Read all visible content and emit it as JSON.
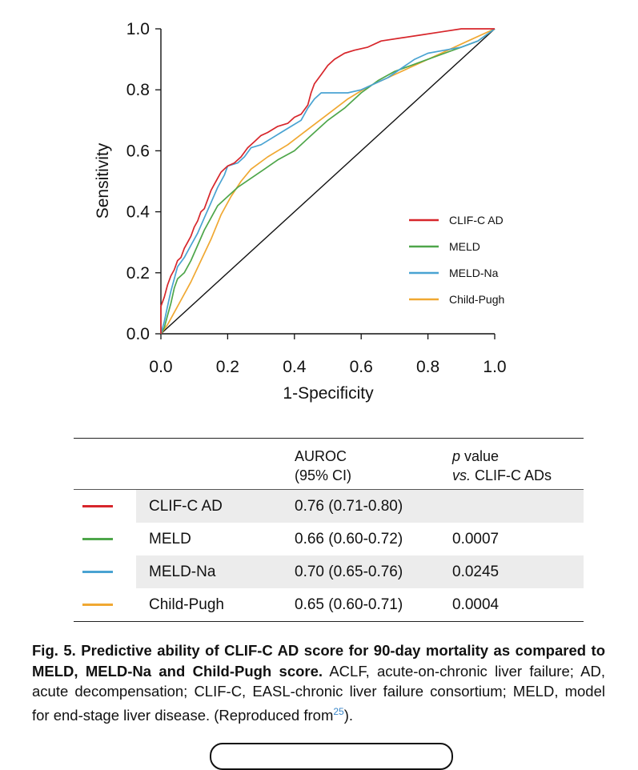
{
  "chart_data": {
    "type": "line",
    "xlabel": "1-Specificity",
    "ylabel": "Sensitivity",
    "xlim": [
      0,
      1
    ],
    "ylim": [
      0,
      1
    ],
    "xticks": [
      "0.0",
      "0.2",
      "0.4",
      "0.6",
      "0.8",
      "1.0"
    ],
    "yticks": [
      "0.0",
      "0.2",
      "0.4",
      "0.6",
      "0.8",
      "1.0"
    ],
    "grid": false,
    "legend_position": "lower-right",
    "reference_line": [
      [
        0,
        0
      ],
      [
        1,
        1
      ]
    ],
    "series": [
      {
        "name": "CLIF-C AD",
        "color": "#d7262b",
        "points": [
          [
            0,
            0
          ],
          [
            0,
            0.09
          ],
          [
            0.01,
            0.12
          ],
          [
            0.02,
            0.16
          ],
          [
            0.03,
            0.19
          ],
          [
            0.04,
            0.21
          ],
          [
            0.05,
            0.24
          ],
          [
            0.06,
            0.25
          ],
          [
            0.07,
            0.28
          ],
          [
            0.08,
            0.3
          ],
          [
            0.09,
            0.32
          ],
          [
            0.1,
            0.35
          ],
          [
            0.11,
            0.37
          ],
          [
            0.12,
            0.4
          ],
          [
            0.13,
            0.41
          ],
          [
            0.14,
            0.44
          ],
          [
            0.15,
            0.47
          ],
          [
            0.16,
            0.49
          ],
          [
            0.17,
            0.51
          ],
          [
            0.18,
            0.53
          ],
          [
            0.19,
            0.54
          ],
          [
            0.2,
            0.55
          ],
          [
            0.22,
            0.56
          ],
          [
            0.24,
            0.58
          ],
          [
            0.26,
            0.61
          ],
          [
            0.28,
            0.63
          ],
          [
            0.3,
            0.65
          ],
          [
            0.32,
            0.66
          ],
          [
            0.35,
            0.68
          ],
          [
            0.38,
            0.69
          ],
          [
            0.4,
            0.71
          ],
          [
            0.42,
            0.72
          ],
          [
            0.44,
            0.75
          ],
          [
            0.45,
            0.79
          ],
          [
            0.46,
            0.82
          ],
          [
            0.48,
            0.85
          ],
          [
            0.5,
            0.88
          ],
          [
            0.52,
            0.9
          ],
          [
            0.55,
            0.92
          ],
          [
            0.58,
            0.93
          ],
          [
            0.62,
            0.94
          ],
          [
            0.66,
            0.96
          ],
          [
            0.72,
            0.97
          ],
          [
            0.78,
            0.98
          ],
          [
            0.84,
            0.99
          ],
          [
            0.9,
            1.0
          ],
          [
            1.0,
            1.0
          ]
        ]
      },
      {
        "name": "MELD",
        "color": "#4ea64a",
        "points": [
          [
            0,
            0
          ],
          [
            0.01,
            0.02
          ],
          [
            0.02,
            0.06
          ],
          [
            0.03,
            0.1
          ],
          [
            0.04,
            0.15
          ],
          [
            0.05,
            0.18
          ],
          [
            0.07,
            0.2
          ],
          [
            0.09,
            0.24
          ],
          [
            0.11,
            0.29
          ],
          [
            0.13,
            0.34
          ],
          [
            0.15,
            0.38
          ],
          [
            0.17,
            0.42
          ],
          [
            0.2,
            0.45
          ],
          [
            0.23,
            0.48
          ],
          [
            0.27,
            0.51
          ],
          [
            0.31,
            0.54
          ],
          [
            0.35,
            0.57
          ],
          [
            0.4,
            0.6
          ],
          [
            0.45,
            0.65
          ],
          [
            0.5,
            0.7
          ],
          [
            0.55,
            0.74
          ],
          [
            0.6,
            0.79
          ],
          [
            0.65,
            0.83
          ],
          [
            0.7,
            0.86
          ],
          [
            0.75,
            0.88
          ],
          [
            0.8,
            0.9
          ],
          [
            0.85,
            0.92
          ],
          [
            0.9,
            0.94
          ],
          [
            0.95,
            0.96
          ],
          [
            1.0,
            1.0
          ]
        ]
      },
      {
        "name": "MELD-Na",
        "color": "#49a3d2",
        "points": [
          [
            0,
            0
          ],
          [
            0.01,
            0.04
          ],
          [
            0.02,
            0.09
          ],
          [
            0.03,
            0.14
          ],
          [
            0.04,
            0.18
          ],
          [
            0.05,
            0.22
          ],
          [
            0.07,
            0.25
          ],
          [
            0.09,
            0.29
          ],
          [
            0.11,
            0.33
          ],
          [
            0.13,
            0.38
          ],
          [
            0.15,
            0.43
          ],
          [
            0.17,
            0.48
          ],
          [
            0.19,
            0.52
          ],
          [
            0.2,
            0.55
          ],
          [
            0.23,
            0.56
          ],
          [
            0.25,
            0.58
          ],
          [
            0.27,
            0.61
          ],
          [
            0.3,
            0.62
          ],
          [
            0.33,
            0.64
          ],
          [
            0.36,
            0.66
          ],
          [
            0.39,
            0.68
          ],
          [
            0.42,
            0.7
          ],
          [
            0.44,
            0.74
          ],
          [
            0.46,
            0.77
          ],
          [
            0.48,
            0.79
          ],
          [
            0.52,
            0.79
          ],
          [
            0.56,
            0.79
          ],
          [
            0.6,
            0.8
          ],
          [
            0.64,
            0.82
          ],
          [
            0.68,
            0.84
          ],
          [
            0.72,
            0.87
          ],
          [
            0.76,
            0.9
          ],
          [
            0.8,
            0.92
          ],
          [
            0.85,
            0.93
          ],
          [
            0.9,
            0.94
          ],
          [
            0.95,
            0.96
          ],
          [
            1.0,
            1.0
          ]
        ]
      },
      {
        "name": "Child-Pugh",
        "color": "#f0a832",
        "points": [
          [
            0,
            0
          ],
          [
            0.02,
            0.03
          ],
          [
            0.04,
            0.07
          ],
          [
            0.06,
            0.11
          ],
          [
            0.09,
            0.17
          ],
          [
            0.12,
            0.24
          ],
          [
            0.15,
            0.31
          ],
          [
            0.18,
            0.39
          ],
          [
            0.21,
            0.45
          ],
          [
            0.24,
            0.5
          ],
          [
            0.27,
            0.54
          ],
          [
            0.32,
            0.58
          ],
          [
            0.38,
            0.62
          ],
          [
            0.44,
            0.67
          ],
          [
            0.5,
            0.72
          ],
          [
            0.56,
            0.77
          ],
          [
            0.62,
            0.81
          ],
          [
            0.68,
            0.84
          ],
          [
            0.74,
            0.87
          ],
          [
            0.8,
            0.9
          ],
          [
            0.86,
            0.93
          ],
          [
            0.92,
            0.96
          ],
          [
            1.0,
            1.0
          ]
        ]
      }
    ]
  },
  "table": {
    "header_auroc_line1": "AUROC",
    "header_auroc_line2": "(95% CI)",
    "header_p_line1_italic": "p",
    "header_p_line1_rest": " value",
    "header_p_line2_italic": "vs.",
    "header_p_line2_rest": " CLIF-C ADs",
    "rows": [
      {
        "name": "CLIF-C AD",
        "auroc": "0.76 (0.71-0.80)",
        "p": "",
        "color": "#d7262b"
      },
      {
        "name": "MELD",
        "auroc": "0.66 (0.60-0.72)",
        "p": "0.0007",
        "color": "#4ea64a"
      },
      {
        "name": "MELD-Na",
        "auroc": "0.70 (0.65-0.76)",
        "p": "0.0245",
        "color": "#49a3d2"
      },
      {
        "name": "Child-Pugh",
        "auroc": "0.65 (0.60-0.71)",
        "p": "0.0004",
        "color": "#f0a832"
      }
    ]
  },
  "caption": {
    "bold": "Fig. 5. Predictive ability of CLIF-C AD score for 90-day mortality as compared to MELD, MELD-Na and Child-Pugh score.",
    "text": " ACLF, acute-on-chronic liver failure; AD, acute decompensation; CLIF-C, EASL-chronic liver failure consortium; MELD, model for end-stage liver disease. (Reproduced from",
    "ref": "25",
    "end": ")."
  }
}
